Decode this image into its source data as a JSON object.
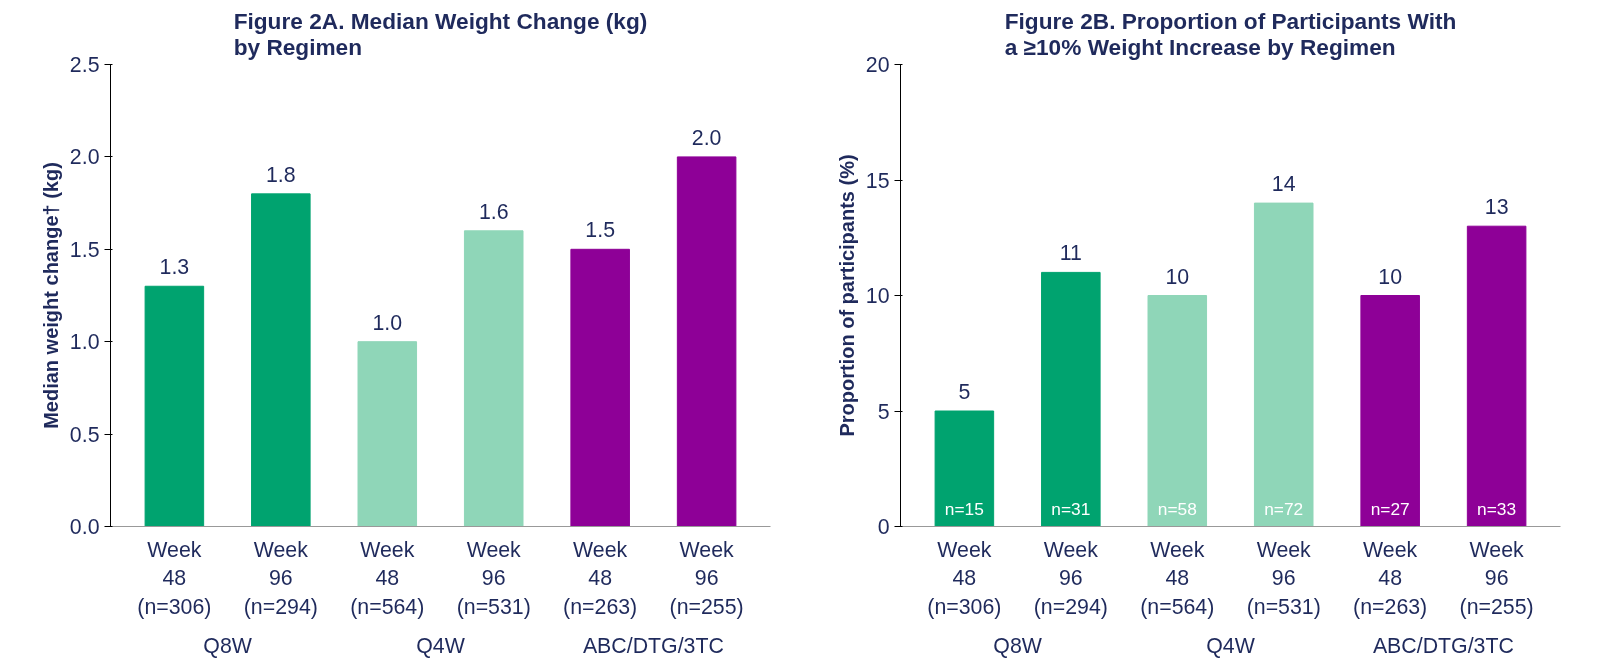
{
  "chart_data": [
    {
      "type": "bar",
      "title": "Figure 2A. Median Weight Change (kg)\nby Regimen",
      "ylabel": "Median weight change† (kg)",
      "categories": [
        "Week\n48\n(n=306)",
        "Week\n96\n(n=294)",
        "Week\n48\n(n=564)",
        "Week\n96\n(n=531)",
        "Week\n48\n(n=263)",
        "Week\n96\n(n=255)"
      ],
      "values": [
        1.3,
        1.8,
        1.0,
        1.6,
        1.5,
        2.0
      ],
      "colors": [
        "#00a36f",
        "#00a36f",
        "#8fd6b8",
        "#8fd6b8",
        "#8e0097",
        "#8e0097"
      ],
      "ylim": [
        0,
        2.5
      ],
      "yticks": [
        {
          "value": 0,
          "label": "0.0"
        },
        0.5,
        {
          "value": 1,
          "label": "1.0"
        },
        1.5,
        {
          "value": 2,
          "label": "2.0"
        },
        2.5
      ],
      "value_labels": [
        "1.3",
        "1.8",
        "1.0",
        "1.6",
        "1.5",
        "2.0"
      ],
      "grid": false,
      "annotations": [
        "Q8W",
        "Q4W",
        "ABC/DTG/3TC"
      ]
    },
    {
      "type": "bar",
      "title": "Figure 2B. Proportion of Participants With\na ≥10% Weight Increase by Regimen",
      "ylabel": "Proportion of participants (%)",
      "categories": [
        "Week\n48\n(n=306)",
        "Week\n96\n(n=294)",
        "Week\n48\n(n=564)",
        "Week\n96\n(n=531)",
        "Week\n48\n(n=263)",
        "Week\n96\n(n=255)"
      ],
      "values": [
        5,
        11,
        10,
        14,
        10,
        13
      ],
      "colors": [
        "#00a36f",
        "#00a36f",
        "#8fd6b8",
        "#8fd6b8",
        "#8e0097",
        "#8e0097"
      ],
      "ylim": [
        0,
        20
      ],
      "yticks": [
        0,
        5,
        10,
        15,
        20
      ],
      "data_labels": true,
      "grid": false,
      "annotations": [
        "Q8W",
        "Q4W",
        "ABC/DTG/3TC",
        "n=15",
        "n=31",
        "n=58",
        "n=72",
        "n=27",
        "n=33"
      ]
    }
  ]
}
